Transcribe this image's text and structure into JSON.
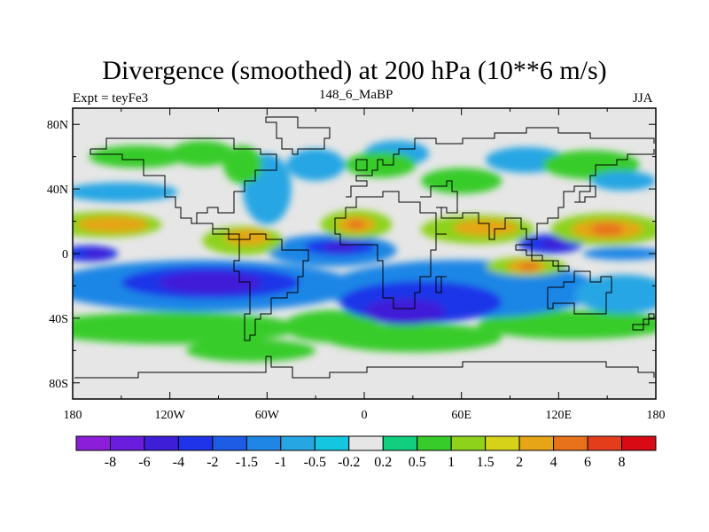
{
  "chart_data": {
    "type": "heatmap",
    "title": "Divergence (smoothed) at 200 hPa (10**6 m/s)",
    "left_label": "Expt = teyFe3",
    "center_label": "148_6_MaBP",
    "right_label": "JJA",
    "x_ticks": [
      "180",
      "120W",
      "60W",
      "0",
      "60E",
      "120E",
      "180"
    ],
    "x_tick_values": [
      -180,
      -120,
      -60,
      0,
      60,
      120,
      180
    ],
    "y_ticks": [
      "80N",
      "40N",
      "0",
      "40S",
      "80S"
    ],
    "y_tick_values": [
      80,
      40,
      0,
      -40,
      -80
    ],
    "xlim": [
      -180,
      180
    ],
    "ylim": [
      -90,
      90
    ],
    "colorbar": {
      "labels": [
        "-8",
        "-6",
        "-4",
        "-2",
        "-1.5",
        "-1",
        "-0.5",
        "-0.2",
        "0.2",
        "0.5",
        "1",
        "1.5",
        "2",
        "4",
        "6",
        "8"
      ],
      "levels": [
        -8,
        -6,
        -4,
        -2,
        -1.5,
        -1,
        -0.5,
        -0.2,
        0.2,
        0.5,
        1,
        1.5,
        2,
        4,
        6,
        8
      ],
      "colors": [
        "#8b1fd9",
        "#6a1ddc",
        "#3f1ed8",
        "#1f34e8",
        "#1e5ce6",
        "#1f86e6",
        "#27a6e4",
        "#15c6e0",
        "#e6e6e6",
        "#11cf7f",
        "#38cc2a",
        "#8ed21c",
        "#d6d21a",
        "#e5a517",
        "#e8721b",
        "#e33d1c",
        "#d80a14"
      ]
    },
    "features": [
      {
        "lon": -95,
        "lat": -20,
        "value": -4
      },
      {
        "lon": 25,
        "lat": -38,
        "value": -4
      },
      {
        "lon": -20,
        "lat": 4,
        "value": -4
      },
      {
        "lon": 115,
        "lat": 6,
        "value": -4
      },
      {
        "lon": -170,
        "lat": 0,
        "value": -4
      },
      {
        "lon": -155,
        "lat": 20,
        "value": 2
      },
      {
        "lon": -5,
        "lat": 18,
        "value": 4
      },
      {
        "lon": 70,
        "lat": 15,
        "value": 2
      },
      {
        "lon": 150,
        "lat": 15,
        "value": 4
      },
      {
        "lon": 100,
        "lat": -8,
        "value": 4
      },
      {
        "lon": -70,
        "lat": 10,
        "value": 2
      }
    ]
  }
}
